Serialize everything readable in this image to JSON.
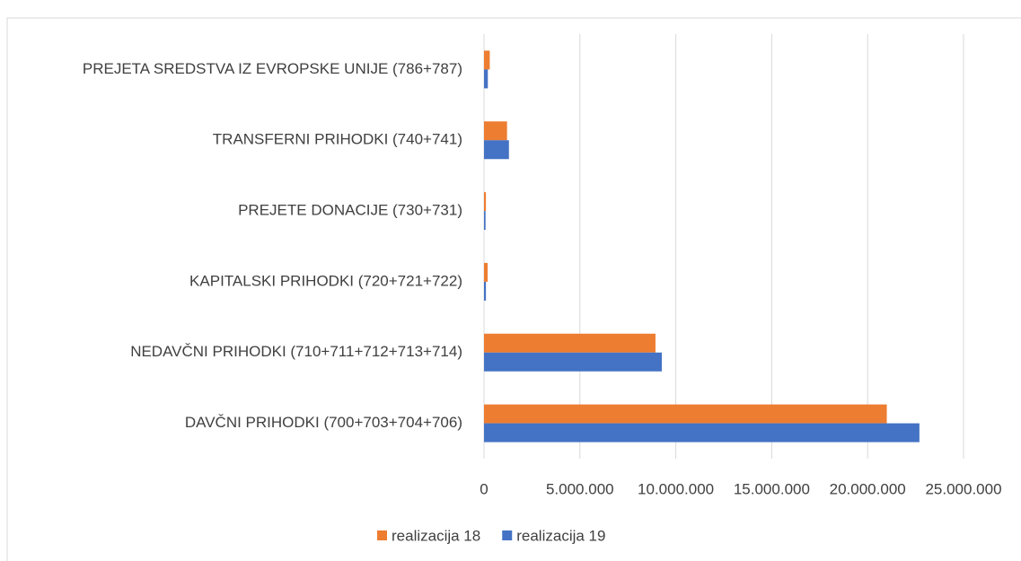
{
  "chart_data": {
    "type": "bar",
    "orientation": "horizontal",
    "categories": [
      "DAVČNI PRIHODKI  (700+703+704+706)",
      "NEDAVČNI  PRIHODKI  (710+711+712+713+714)",
      "KAPITALSKI PRIHODKI  (720+721+722)",
      "PREJETE DONACIJE  (730+731)",
      "TRANSFERNI PRIHODKI  (740+741)",
      "PREJETA SREDSTVA IZ EVROPSKE UNIJE  (786+787)"
    ],
    "series": [
      {
        "name": "realizacija  18",
        "color": "#ed7d31",
        "values": [
          21000000,
          8940000,
          190000,
          100000,
          1200000,
          300000
        ]
      },
      {
        "name": "realizacija 19",
        "color": "#4472c4",
        "values": [
          22700000,
          9270000,
          100000,
          80000,
          1300000,
          200000
        ]
      }
    ],
    "xlim": [
      0,
      25000000
    ],
    "xticks": [
      0,
      {
        "value": 5000000,
        "label": "5.000.000"
      },
      {
        "value": 10000000,
        "label": "10.000.000"
      },
      {
        "value": 15000000,
        "label": "15.000.000"
      },
      {
        "value": 20000000,
        "label": "20.000.000"
      },
      {
        "value": 25000000,
        "label": "25.000.000"
      }
    ],
    "grid": true,
    "legend": "bottom"
  }
}
